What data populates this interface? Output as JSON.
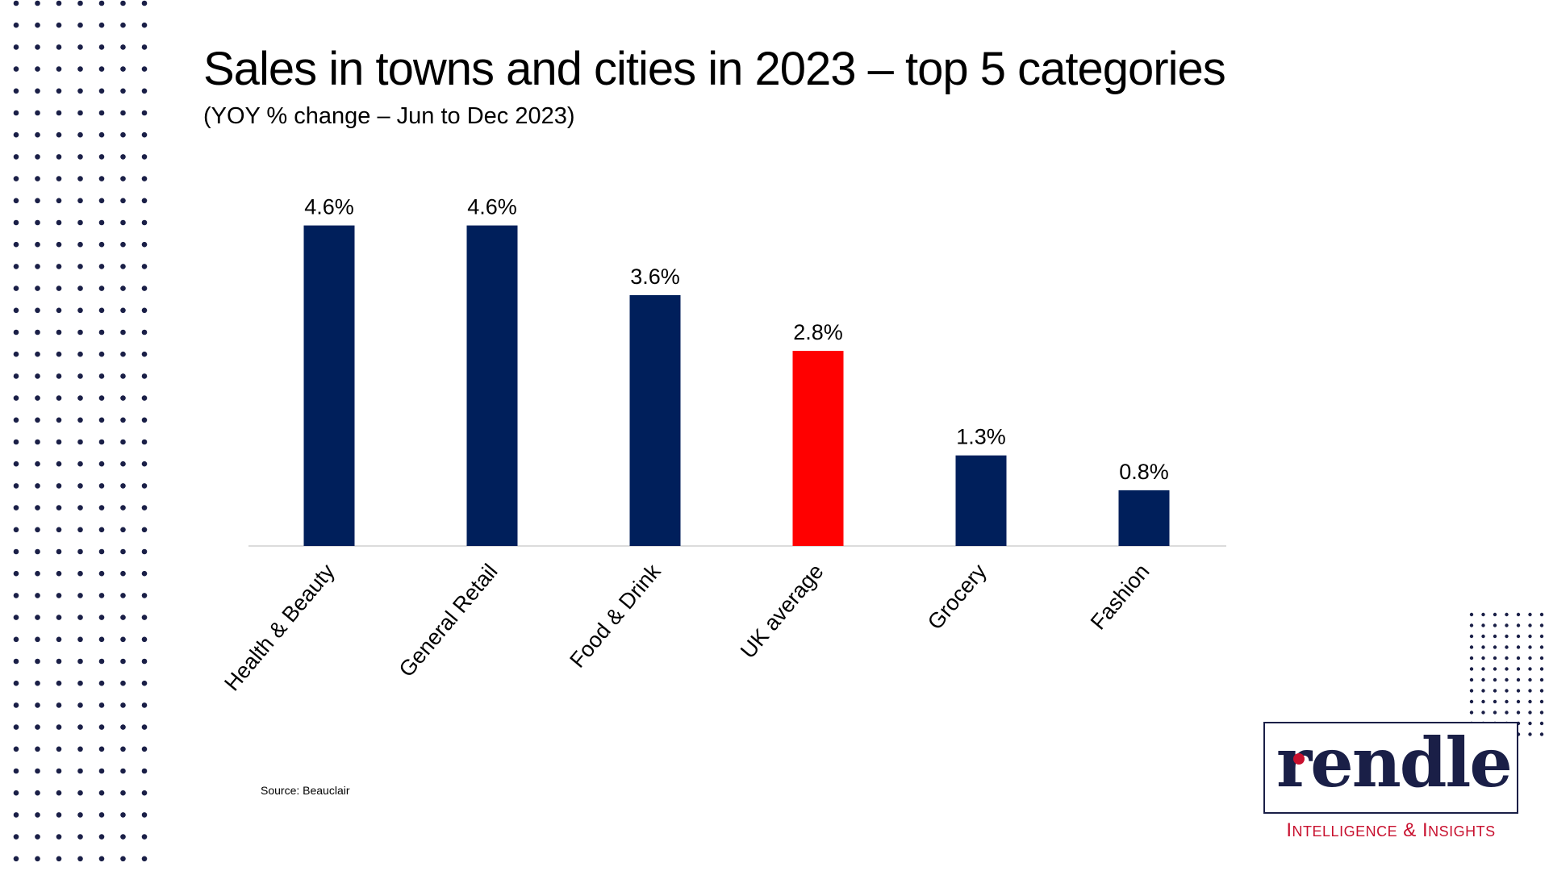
{
  "title": "Sales in towns and cities in 2023 – top 5 categories",
  "subtitle": "(YOY % change – Jun to Dec 2023)",
  "source": "Source: Beauclair",
  "logo": {
    "wordmark": "rendle",
    "tagline": "Intelligence & Insights",
    "tagline_parts": [
      "I",
      "NTELLIGENCE",
      " & ",
      "I",
      "NSIGHTS"
    ]
  },
  "colors": {
    "navy": "#001f5b",
    "highlight": "#ff0000",
    "dots": "#1a1f47",
    "brand_red": "#c8102e"
  },
  "chart_data": {
    "type": "bar",
    "title": "Sales in towns and cities in 2023 – top 5 categories",
    "subtitle": "(YOY % change – Jun to Dec 2023)",
    "categories": [
      "Health & Beauty",
      "General Retail",
      "Food & Drink",
      "UK average",
      "Grocery",
      "Fashion"
    ],
    "values": [
      4.6,
      4.6,
      3.6,
      2.8,
      1.3,
      0.8
    ],
    "data_labels": [
      "4.6%",
      "4.6%",
      "3.6%",
      "2.8%",
      "1.3%",
      "0.8%"
    ],
    "highlight_category": "UK average",
    "ylim": [
      0,
      5
    ],
    "grid": false,
    "legend": "none",
    "xlabel": "",
    "ylabel": ""
  }
}
